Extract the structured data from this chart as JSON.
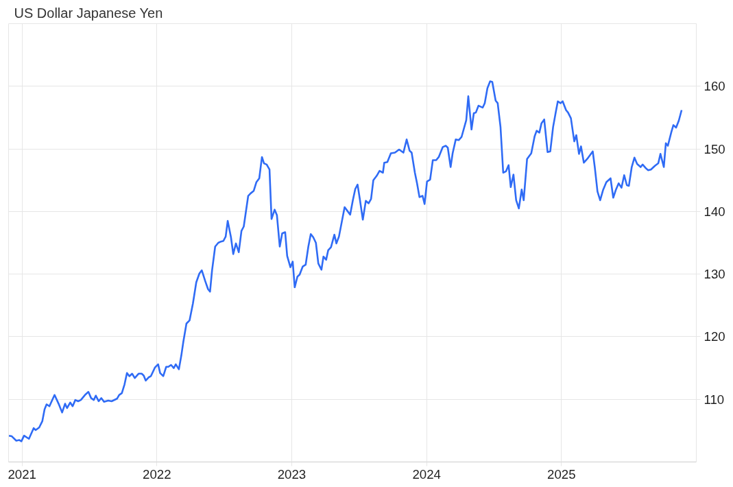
{
  "chart_data": {
    "type": "line",
    "title": "US Dollar Japanese Yen",
    "x": [
      2020.903,
      2020.924,
      2020.957,
      2020.98,
      2020.995,
      2021.015,
      2021.051,
      2021.086,
      2021.101,
      2021.127,
      2021.15,
      2021.167,
      2021.182,
      2021.203,
      2021.241,
      2021.271,
      2021.297,
      2021.319,
      2021.334,
      2021.357,
      2021.375,
      2021.395,
      2021.416,
      2021.436,
      2021.471,
      2021.492,
      2021.512,
      2021.532,
      2021.547,
      2021.568,
      2021.588,
      2021.608,
      2021.639,
      2021.664,
      2021.704,
      2021.72,
      2021.74,
      2021.76,
      2021.778,
      2021.796,
      2021.816,
      2021.836,
      2021.864,
      2021.887,
      2021.902,
      2021.917,
      2021.938,
      2021.955,
      2021.986,
      2022.009,
      2022.024,
      2022.047,
      2022.069,
      2022.085,
      2022.105,
      2022.125,
      2022.14,
      2022.163,
      2022.181,
      2022.196,
      2022.219,
      2022.242,
      2022.267,
      2022.292,
      2022.315,
      2022.333,
      2022.358,
      2022.379,
      2022.394,
      2022.409,
      2022.432,
      2022.455,
      2022.475,
      2022.493,
      2022.51,
      2022.525,
      2022.549,
      2022.566,
      2022.586,
      2022.607,
      2022.627,
      2022.644,
      2022.677,
      2022.695,
      2022.718,
      2022.738,
      2022.759,
      2022.779,
      2022.794,
      2022.814,
      2022.835,
      2022.85,
      2022.873,
      2022.89,
      2022.911,
      2022.929,
      2022.951,
      2022.966,
      2022.99,
      2023.007,
      2023.022,
      2023.042,
      2023.058,
      2023.081,
      2023.103,
      2023.123,
      2023.141,
      2023.159,
      2023.179,
      2023.197,
      2023.22,
      2023.235,
      2023.255,
      2023.27,
      2023.291,
      2023.316,
      2023.331,
      2023.35,
      2023.392,
      2023.433,
      2023.453,
      2023.471,
      2023.488,
      2023.504,
      2023.527,
      2023.549,
      2023.57,
      2023.588,
      2023.605,
      2023.63,
      2023.651,
      2023.676,
      2023.686,
      2023.709,
      2023.735,
      2023.765,
      2023.796,
      2023.828,
      2023.852,
      2023.874,
      2023.889,
      2023.913,
      2023.929,
      2023.947,
      2023.97,
      2023.985,
      2024.003,
      2024.026,
      2024.046,
      2024.071,
      2024.09,
      2024.12,
      2024.142,
      2024.157,
      2024.178,
      2024.193,
      2024.216,
      2024.238,
      2024.259,
      2024.294,
      2024.309,
      2024.333,
      2024.35,
      2024.365,
      2024.385,
      2024.416,
      2024.431,
      2024.451,
      2024.471,
      2024.487,
      2024.512,
      2024.527,
      2024.548,
      2024.568,
      2024.588,
      2024.608,
      2024.624,
      2024.644,
      2024.664,
      2024.684,
      2024.705,
      2024.72,
      2024.745,
      2024.776,
      2024.801,
      2024.816,
      2024.836,
      2024.852,
      2024.872,
      2024.897,
      2024.917,
      2024.938,
      2024.958,
      2024.973,
      2024.993,
      2025.009,
      2025.034,
      2025.049,
      2025.07,
      2025.095,
      2025.11,
      2025.13,
      2025.145,
      2025.166,
      2025.191,
      2025.232,
      2025.247,
      2025.267,
      2025.287,
      2025.308,
      2025.333,
      2025.364,
      2025.384,
      2025.404,
      2025.424,
      2025.445,
      2025.465,
      2025.485,
      2025.5,
      2025.521,
      2025.541,
      2025.561,
      2025.587,
      2025.602,
      2025.622,
      2025.642,
      2025.663,
      2025.693,
      2025.718,
      2025.734,
      2025.759,
      2025.774,
      2025.789,
      2025.815,
      2025.83,
      2025.85,
      2025.87,
      2025.891
    ],
    "series": [
      {
        "color": "#2f6bf5",
        "values": [
          104.2,
          104.1,
          103.4,
          103.5,
          103.3,
          104.2,
          103.7,
          105.4,
          105.1,
          105.5,
          106.5,
          108.4,
          109.2,
          108.9,
          110.7,
          109.3,
          107.9,
          109.3,
          108.6,
          109.5,
          108.9,
          109.9,
          109.7,
          109.9,
          110.8,
          111.2,
          110.2,
          109.9,
          110.6,
          109.7,
          110.2,
          109.6,
          109.8,
          109.7,
          110.1,
          110.7,
          111.0,
          112.4,
          114.2,
          113.7,
          114.1,
          113.4,
          114.1,
          114.1,
          113.8,
          113.0,
          113.5,
          113.7,
          115.1,
          115.6,
          114.2,
          113.7,
          115.2,
          115.2,
          115.5,
          115.0,
          115.6,
          114.8,
          117.0,
          119.2,
          122.1,
          122.6,
          125.3,
          128.7,
          130.1,
          130.6,
          128.9,
          127.6,
          127.2,
          130.6,
          134.4,
          135.0,
          135.2,
          135.3,
          136.0,
          138.5,
          135.9,
          133.2,
          134.9,
          133.5,
          136.9,
          137.6,
          142.5,
          142.9,
          143.3,
          144.7,
          145.3,
          148.7,
          147.7,
          147.5,
          146.7,
          138.8,
          140.3,
          139.4,
          134.4,
          136.5,
          136.7,
          132.9,
          131.1,
          132.0,
          127.9,
          129.6,
          129.9,
          131.2,
          131.5,
          134.4,
          136.4,
          135.9,
          135.0,
          131.7,
          130.7,
          132.8,
          132.3,
          133.8,
          134.3,
          136.3,
          134.9,
          136.0,
          140.7,
          139.5,
          141.8,
          143.6,
          144.3,
          142.1,
          138.7,
          141.7,
          141.3,
          142.0,
          145.0,
          145.7,
          146.5,
          146.2,
          147.8,
          147.9,
          149.3,
          149.4,
          149.9,
          149.4,
          151.5,
          149.7,
          149.4,
          146.2,
          144.5,
          142.3,
          142.5,
          141.2,
          144.8,
          145.1,
          148.2,
          148.2,
          148.7,
          150.3,
          150.5,
          150.2,
          147.1,
          149.3,
          151.5,
          151.4,
          151.9,
          154.6,
          158.4,
          153.1,
          155.7,
          155.8,
          156.9,
          156.6,
          157.3,
          159.7,
          160.8,
          160.7,
          157.7,
          157.3,
          153.5,
          146.2,
          146.4,
          147.4,
          143.9,
          145.9,
          141.8,
          140.5,
          143.5,
          141.8,
          148.4,
          149.3,
          152.0,
          152.9,
          152.6,
          154.1,
          154.7,
          149.5,
          149.6,
          153.5,
          155.9,
          157.6,
          157.3,
          157.6,
          156.2,
          155.8,
          154.9,
          151.2,
          152.2,
          149.2,
          150.4,
          147.8,
          148.4,
          149.6,
          147.1,
          143.2,
          141.8,
          143.4,
          144.7,
          145.3,
          142.2,
          143.5,
          144.5,
          143.8,
          145.8,
          144.2,
          144.1,
          147.1,
          148.6,
          147.6,
          147.1,
          147.5,
          147.0,
          146.6,
          146.7,
          147.3,
          147.7,
          149.2,
          147.1,
          150.9,
          150.5,
          152.7,
          153.8,
          153.4,
          154.5,
          156.2
        ]
      }
    ],
    "xlim": [
      2020.9,
      2026.0
    ],
    "xticks": [
      2021,
      2022,
      2023,
      2024,
      2025
    ],
    "ylim": [
      100,
      170
    ],
    "yticks": [
      110,
      120,
      130,
      140,
      150,
      160
    ],
    "grid": true,
    "marker": "none",
    "line_style": "solid"
  }
}
